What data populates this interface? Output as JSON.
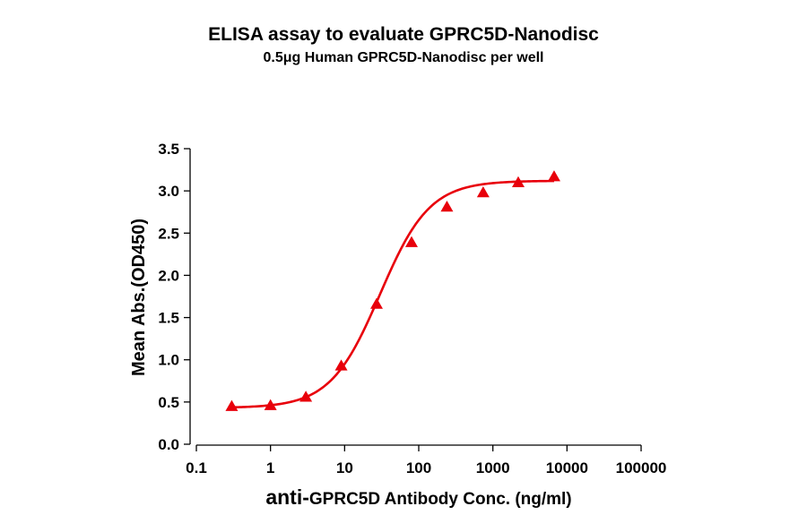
{
  "chart_data": {
    "type": "scatter",
    "title": "ELISA assay to evaluate GPRC5D-Nanodisc",
    "subtitle": "0.5μg Human GPRC5D-Nanodisc per well",
    "xlabel_prefix": "anti-",
    "xlabel_main": "GPRC5D Antibody Conc. (ng/ml)",
    "ylabel": "Mean Abs.(OD450)",
    "x_scale": "log",
    "xlim": [
      0.1,
      100000
    ],
    "ylim": [
      0,
      3.5
    ],
    "x_ticks": [
      0.1,
      1,
      10,
      100,
      1000,
      10000,
      100000
    ],
    "x_tick_labels": [
      "0.1",
      "1",
      "10",
      "100",
      "1000",
      "10000",
      "100000"
    ],
    "y_ticks": [
      0,
      0.5,
      1.0,
      1.5,
      2.0,
      2.5,
      3.0,
      3.5
    ],
    "y_tick_labels": [
      "0.0",
      "0.5",
      "1.0",
      "1.5",
      "2.0",
      "2.5",
      "3.0",
      "3.5"
    ],
    "grid": false,
    "series": [
      {
        "marker": "triangle",
        "color": "#e8000b",
        "x": [
          0.3,
          1,
          3,
          9,
          27,
          80,
          240,
          740,
          2200,
          6700
        ],
        "y": [
          0.45,
          0.46,
          0.56,
          0.93,
          1.66,
          2.39,
          2.81,
          2.98,
          3.1,
          3.17
        ]
      }
    ],
    "fit_curve": {
      "model": "4PL",
      "color": "#e8000b",
      "bottom": 0.43,
      "top": 3.12,
      "ec50": 30,
      "hill": 1.3,
      "x_range": [
        0.3,
        6700
      ]
    }
  }
}
